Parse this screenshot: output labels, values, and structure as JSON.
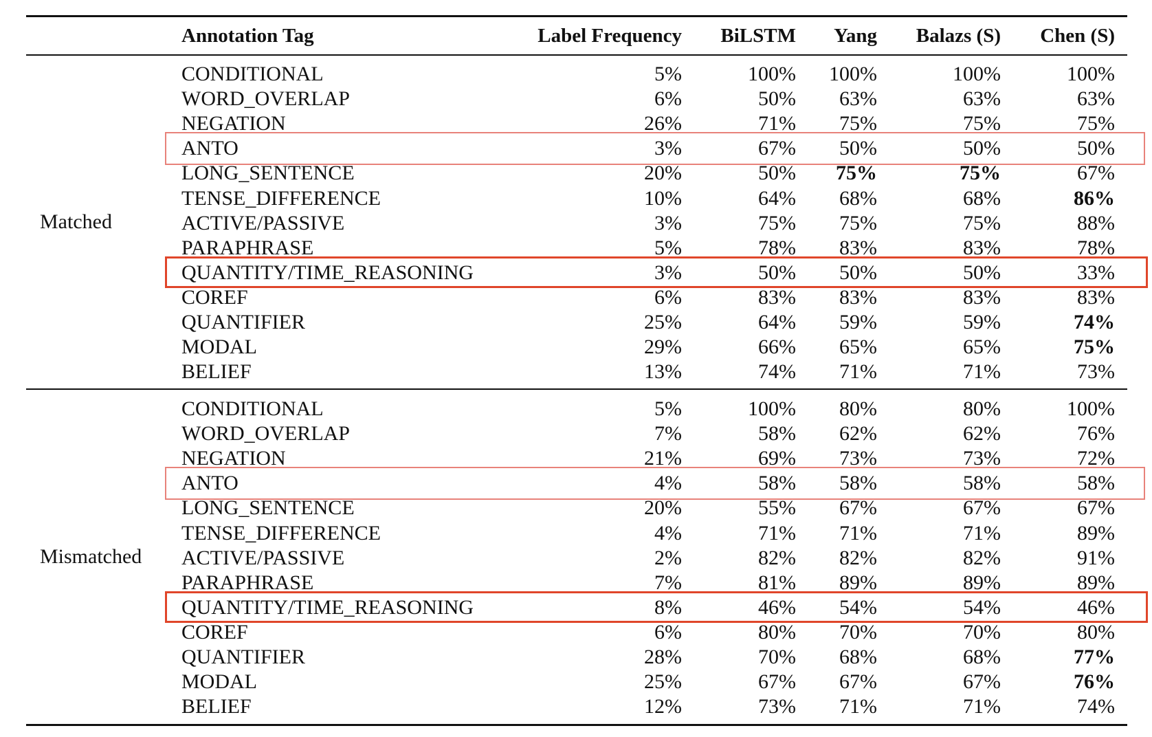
{
  "table": {
    "headers": [
      "",
      "Annotation Tag",
      "Label Frequency",
      "BiLSTM",
      "Yang",
      "Balazs (S)",
      "Chen (S)"
    ],
    "groups": [
      {
        "label": "Matched",
        "rows": [
          {
            "tag": "CONDITIONAL",
            "freq": "5%",
            "bilstm": "100%",
            "yang": "100%",
            "balazs": "100%",
            "chen": "100%"
          },
          {
            "tag": "WORD_OVERLAP",
            "freq": "6%",
            "bilstm": "50%",
            "yang": "63%",
            "balazs": "63%",
            "chen": "63%"
          },
          {
            "tag": "NEGATION",
            "freq": "26%",
            "bilstm": "71%",
            "yang": "75%",
            "balazs": "75%",
            "chen": "75%"
          },
          {
            "tag": "ANTO",
            "freq": "3%",
            "bilstm": "67%",
            "yang": "50%",
            "balazs": "50%",
            "chen": "50%"
          },
          {
            "tag": "LONG_SENTENCE",
            "freq": "20%",
            "bilstm": "50%",
            "yang": "75%",
            "balazs": "75%",
            "chen": "67%",
            "bold": [
              "yang",
              "balazs"
            ]
          },
          {
            "tag": "TENSE_DIFFERENCE",
            "freq": "10%",
            "bilstm": "64%",
            "yang": "68%",
            "balazs": "68%",
            "chen": "86%",
            "bold": [
              "chen"
            ]
          },
          {
            "tag": "ACTIVE/PASSIVE",
            "freq": "3%",
            "bilstm": "75%",
            "yang": "75%",
            "balazs": "75%",
            "chen": "88%"
          },
          {
            "tag": "PARAPHRASE",
            "freq": "5%",
            "bilstm": "78%",
            "yang": "83%",
            "balazs": "83%",
            "chen": "78%"
          },
          {
            "tag": "QUANTITY/TIME_REASONING",
            "freq": "3%",
            "bilstm": "50%",
            "yang": "50%",
            "balazs": "50%",
            "chen": "33%"
          },
          {
            "tag": "COREF",
            "freq": "6%",
            "bilstm": "83%",
            "yang": "83%",
            "balazs": "83%",
            "chen": "83%"
          },
          {
            "tag": "QUANTIFIER",
            "freq": "25%",
            "bilstm": "64%",
            "yang": "59%",
            "balazs": "59%",
            "chen": "74%",
            "bold": [
              "chen"
            ]
          },
          {
            "tag": "MODAL",
            "freq": "29%",
            "bilstm": "66%",
            "yang": "65%",
            "balazs": "65%",
            "chen": "75%",
            "bold": [
              "chen"
            ]
          },
          {
            "tag": "BELIEF",
            "freq": "13%",
            "bilstm": "74%",
            "yang": "71%",
            "balazs": "71%",
            "chen": "73%"
          }
        ]
      },
      {
        "label": "Mismatched",
        "rows": [
          {
            "tag": "CONDITIONAL",
            "freq": "5%",
            "bilstm": "100%",
            "yang": "80%",
            "balazs": "80%",
            "chen": "100%"
          },
          {
            "tag": "WORD_OVERLAP",
            "freq": "7%",
            "bilstm": "58%",
            "yang": "62%",
            "balazs": "62%",
            "chen": "76%"
          },
          {
            "tag": "NEGATION",
            "freq": "21%",
            "bilstm": "69%",
            "yang": "73%",
            "balazs": "73%",
            "chen": "72%"
          },
          {
            "tag": "ANTO",
            "freq": "4%",
            "bilstm": "58%",
            "yang": "58%",
            "balazs": "58%",
            "chen": "58%"
          },
          {
            "tag": "LONG_SENTENCE",
            "freq": "20%",
            "bilstm": "55%",
            "yang": "67%",
            "balazs": "67%",
            "chen": "67%"
          },
          {
            "tag": "TENSE_DIFFERENCE",
            "freq": "4%",
            "bilstm": "71%",
            "yang": "71%",
            "balazs": "71%",
            "chen": "89%"
          },
          {
            "tag": "ACTIVE/PASSIVE",
            "freq": "2%",
            "bilstm": "82%",
            "yang": "82%",
            "balazs": "82%",
            "chen": "91%"
          },
          {
            "tag": "PARAPHRASE",
            "freq": "7%",
            "bilstm": "81%",
            "yang": "89%",
            "balazs": "89%",
            "chen": "89%"
          },
          {
            "tag": "QUANTITY/TIME_REASONING",
            "freq": "8%",
            "bilstm": "46%",
            "yang": "54%",
            "balazs": "54%",
            "chen": "46%"
          },
          {
            "tag": "COREF",
            "freq": "6%",
            "bilstm": "80%",
            "yang": "70%",
            "balazs": "70%",
            "chen": "80%"
          },
          {
            "tag": "QUANTIFIER",
            "freq": "28%",
            "bilstm": "70%",
            "yang": "68%",
            "balazs": "68%",
            "chen": "77%",
            "bold": [
              "chen"
            ]
          },
          {
            "tag": "MODAL",
            "freq": "25%",
            "bilstm": "67%",
            "yang": "67%",
            "balazs": "67%",
            "chen": "76%",
            "bold": [
              "chen"
            ]
          },
          {
            "tag": "BELIEF",
            "freq": "12%",
            "bilstm": "73%",
            "yang": "71%",
            "balazs": "71%",
            "chen": "74%"
          }
        ]
      }
    ]
  },
  "highlights": [
    {
      "group": 0,
      "row": 3,
      "color": "#e8827a",
      "style": "light"
    },
    {
      "group": 0,
      "row": 8,
      "color": "#e0462a",
      "style": "strong"
    },
    {
      "group": 1,
      "row": 3,
      "color": "#e8827a",
      "style": "light"
    },
    {
      "group": 1,
      "row": 8,
      "color": "#e0462a",
      "style": "strong"
    }
  ]
}
